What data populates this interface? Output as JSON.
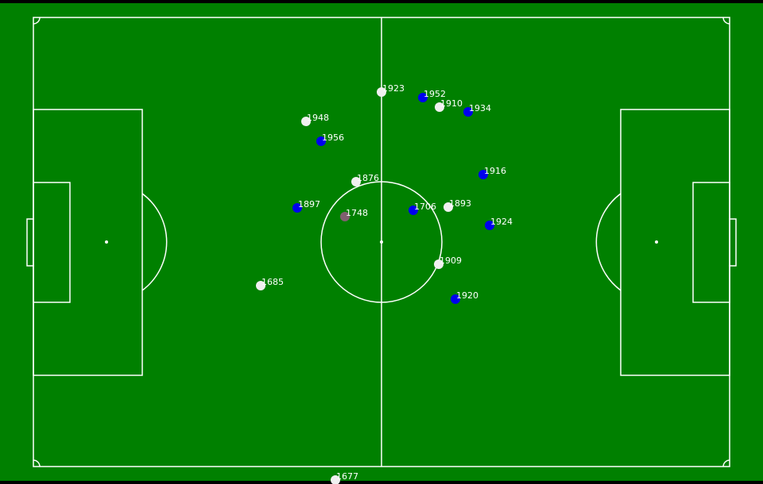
{
  "colors": {
    "grass": "#008000",
    "lines": "#ffffff",
    "team_white": "#f0f0f0",
    "team_blue": "#0000ee",
    "ball_or_special": "#806070",
    "border": "#000000"
  },
  "players": [
    {
      "id": "1923",
      "team": "white"
    },
    {
      "id": "1952",
      "team": "blue"
    },
    {
      "id": "1910",
      "team": "white"
    },
    {
      "id": "1934",
      "team": "blue"
    },
    {
      "id": "1948",
      "team": "white"
    },
    {
      "id": "1956",
      "team": "blue"
    },
    {
      "id": "1916",
      "team": "blue"
    },
    {
      "id": "1876",
      "team": "white"
    },
    {
      "id": "1897",
      "team": "blue"
    },
    {
      "id": "1748",
      "team": "special"
    },
    {
      "id": "1706",
      "team": "blue"
    },
    {
      "id": "1893",
      "team": "white"
    },
    {
      "id": "1924",
      "team": "blue"
    },
    {
      "id": "1909",
      "team": "white"
    },
    {
      "id": "1685",
      "team": "white"
    },
    {
      "id": "1920",
      "team": "blue"
    },
    {
      "id": "1677",
      "team": "white"
    }
  ]
}
